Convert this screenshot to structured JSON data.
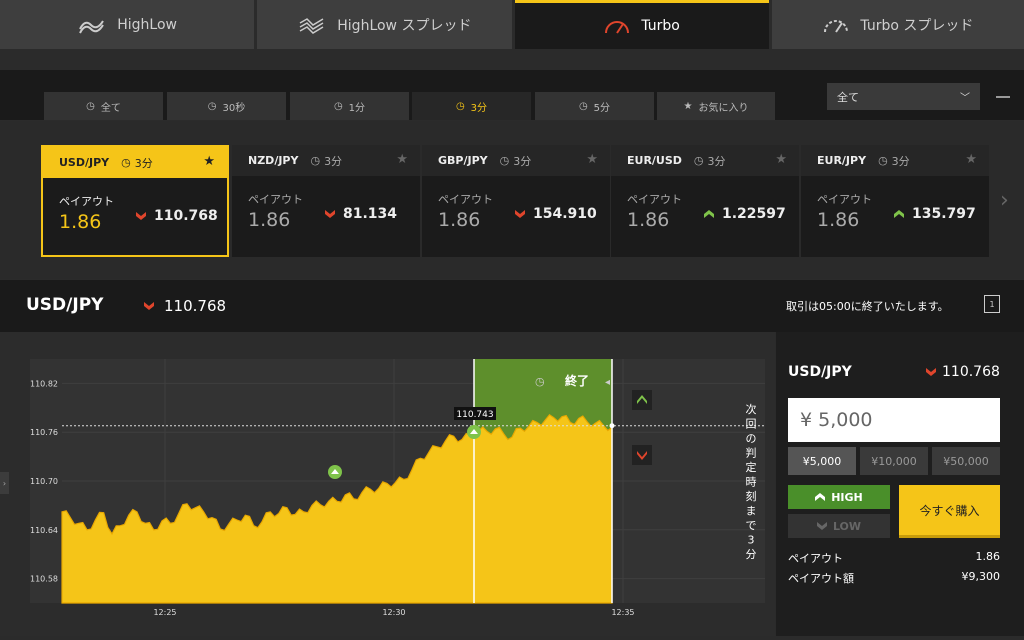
{
  "top_tabs": [
    {
      "label": "HighLow",
      "icon": "highlow-icon",
      "active": false
    },
    {
      "label": "HighLow スプレッド",
      "icon": "highlow-spread-icon",
      "active": false
    },
    {
      "label": "Turbo",
      "icon": "speedometer-icon",
      "active": true
    },
    {
      "label": "Turbo スプレッド",
      "icon": "speedometer-dashed-icon",
      "active": false
    }
  ],
  "duration_tabs": [
    {
      "label": "全て",
      "icon": "clock-icon"
    },
    {
      "label": "30秒",
      "icon": "clock-icon"
    },
    {
      "label": "1分",
      "icon": "clock-icon"
    },
    {
      "label": "3分",
      "icon": "clock-icon",
      "active": true
    },
    {
      "label": "5分",
      "icon": "clock-icon"
    },
    {
      "label": "お気に入り",
      "icon": "star-icon"
    }
  ],
  "filter": {
    "selected": "全て"
  },
  "cards": [
    {
      "symbol": "USD/JPY",
      "duration": "3分",
      "payout_label": "ペイアウト",
      "payout": "1.86",
      "rate": "110.768",
      "direction": "down",
      "active": true
    },
    {
      "symbol": "NZD/JPY",
      "duration": "3分",
      "payout_label": "ペイアウト",
      "payout": "1.86",
      "rate": "81.134",
      "direction": "down"
    },
    {
      "symbol": "GBP/JPY",
      "duration": "3分",
      "payout_label": "ペイアウト",
      "payout": "1.86",
      "rate": "154.910",
      "direction": "down"
    },
    {
      "symbol": "EUR/USD",
      "duration": "3分",
      "payout_label": "ペイアウト",
      "payout": "1.86",
      "rate": "1.22597",
      "direction": "up"
    },
    {
      "symbol": "EUR/JPY",
      "duration": "3分",
      "payout_label": "ペイアウト",
      "payout": "1.86",
      "rate": "135.797",
      "direction": "up"
    }
  ],
  "symbol_bar": {
    "symbol": "USD/JPY",
    "rate": "110.768",
    "notice": "取引は05:00に終了いたします。",
    "icon_label": "1"
  },
  "chart": {
    "y_ticks": [
      "110.82",
      "110.76",
      "110.70",
      "110.64",
      "110.58"
    ],
    "x_ticks": [
      "12:25",
      "12:30",
      "12:35"
    ],
    "end_label": "終了",
    "marker_value": "110.743",
    "vertical_text": "次回の判定時刻まで3分"
  },
  "chart_data": {
    "type": "area",
    "title": "",
    "xlabel": "",
    "ylabel": "",
    "x_ticks": [
      "12:25",
      "12:30",
      "12:35"
    ],
    "ylim": [
      110.55,
      110.85
    ],
    "current_value": 110.768,
    "marker_value": 110.743,
    "series": [
      {
        "values": [
          110.662,
          110.655,
          110.648,
          110.64,
          110.652,
          110.661,
          110.635,
          110.645,
          110.658,
          110.662,
          110.648,
          110.64,
          110.651,
          110.648,
          110.66,
          110.672,
          110.667,
          110.662,
          110.655,
          110.641,
          110.647,
          110.652,
          110.658,
          110.645,
          110.65,
          110.662,
          110.66,
          110.667,
          110.659,
          110.662,
          110.67,
          110.671,
          110.675,
          110.675,
          110.683,
          110.678,
          110.686,
          110.69,
          110.691,
          110.697,
          110.698,
          110.702,
          110.714,
          110.728,
          110.735,
          110.742,
          110.749,
          110.755,
          110.751,
          110.756,
          110.762,
          110.761,
          110.764,
          110.758,
          110.754,
          110.765,
          110.767,
          110.772,
          110.775,
          110.778,
          110.779,
          110.772,
          110.777,
          110.773,
          110.771,
          110.768,
          110.766
        ]
      }
    ]
  },
  "panel": {
    "symbol": "USD/JPY",
    "rate": "110.768",
    "amount": "¥ 5,000",
    "amount_buttons": [
      "¥5,000",
      "¥10,000",
      "¥50,000"
    ],
    "high_label": "HIGH",
    "low_label": "LOW",
    "buy_label": "今すぐ購入",
    "payout_label": "ペイアウト",
    "payout": "1.86",
    "payout_amount_label": "ペイアウト額",
    "payout_amount": "¥9,300"
  },
  "colors": {
    "accent": "#f5c518",
    "up": "#4a8f2a",
    "down": "#e0452c",
    "bg": "#2b2b2b"
  }
}
